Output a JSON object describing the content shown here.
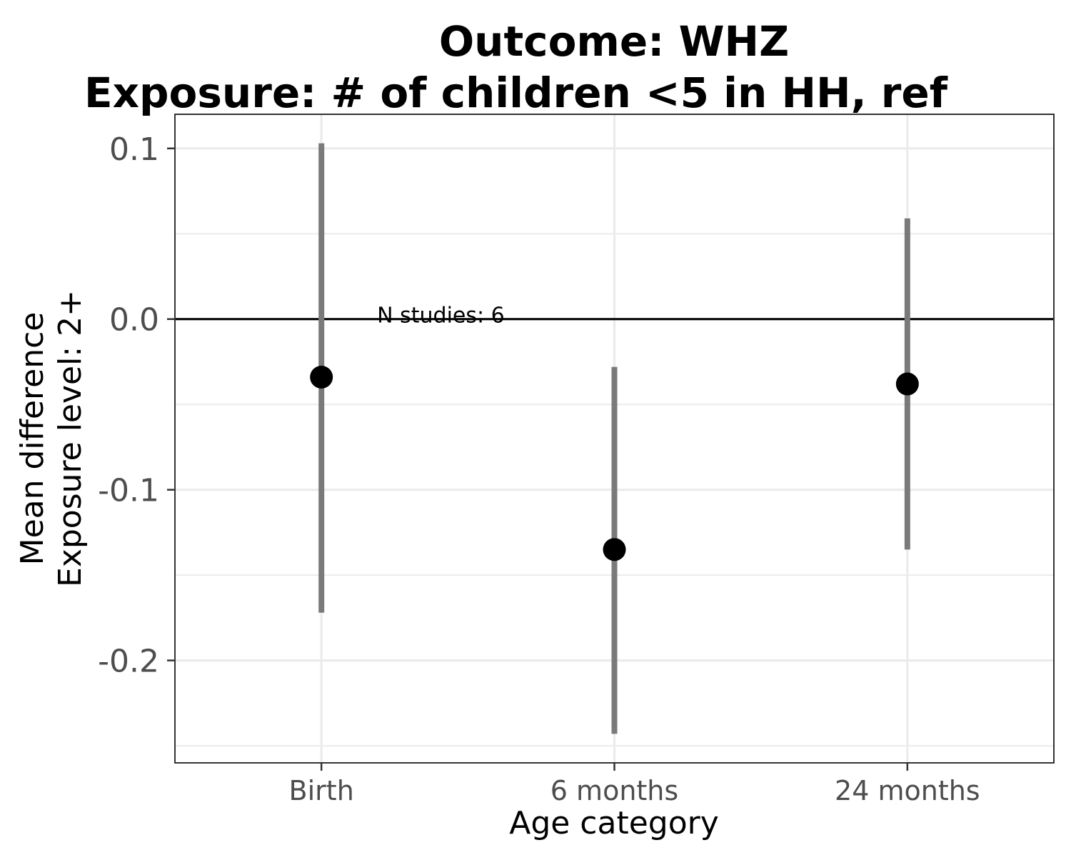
{
  "chart_data": {
    "type": "scatter",
    "title_lines": [
      "Outcome: WHZ",
      "Exposure: # of children <5 in HH, ref"
    ],
    "xlabel": "Age category",
    "ylabel_lines": [
      "Mean difference",
      "Exposure level: 2+"
    ],
    "categories": [
      "Birth",
      "6 months",
      "24 months"
    ],
    "series": [
      {
        "estimate": [
          -0.034,
          -0.135,
          -0.038
        ],
        "ci_lower": [
          -0.172,
          -0.243,
          -0.135
        ],
        "ci_upper": [
          0.103,
          -0.028,
          0.059
        ]
      }
    ],
    "reference_line": 0,
    "annotation": {
      "text": "N studies: 6",
      "x": "Birth",
      "y": 0.0
    },
    "y_ticks": [
      0.1,
      0.0,
      -0.1,
      -0.2
    ],
    "y_tick_labels": [
      "0.1",
      "0.0",
      "-0.1",
      "-0.2"
    ],
    "ylim": [
      -0.26,
      0.12
    ],
    "grid": true,
    "colors": {
      "point": "#000000",
      "ci": "#7a7a7a",
      "reference": "#000000",
      "grid": "#ebebeb",
      "panel_border": "#333333"
    }
  }
}
